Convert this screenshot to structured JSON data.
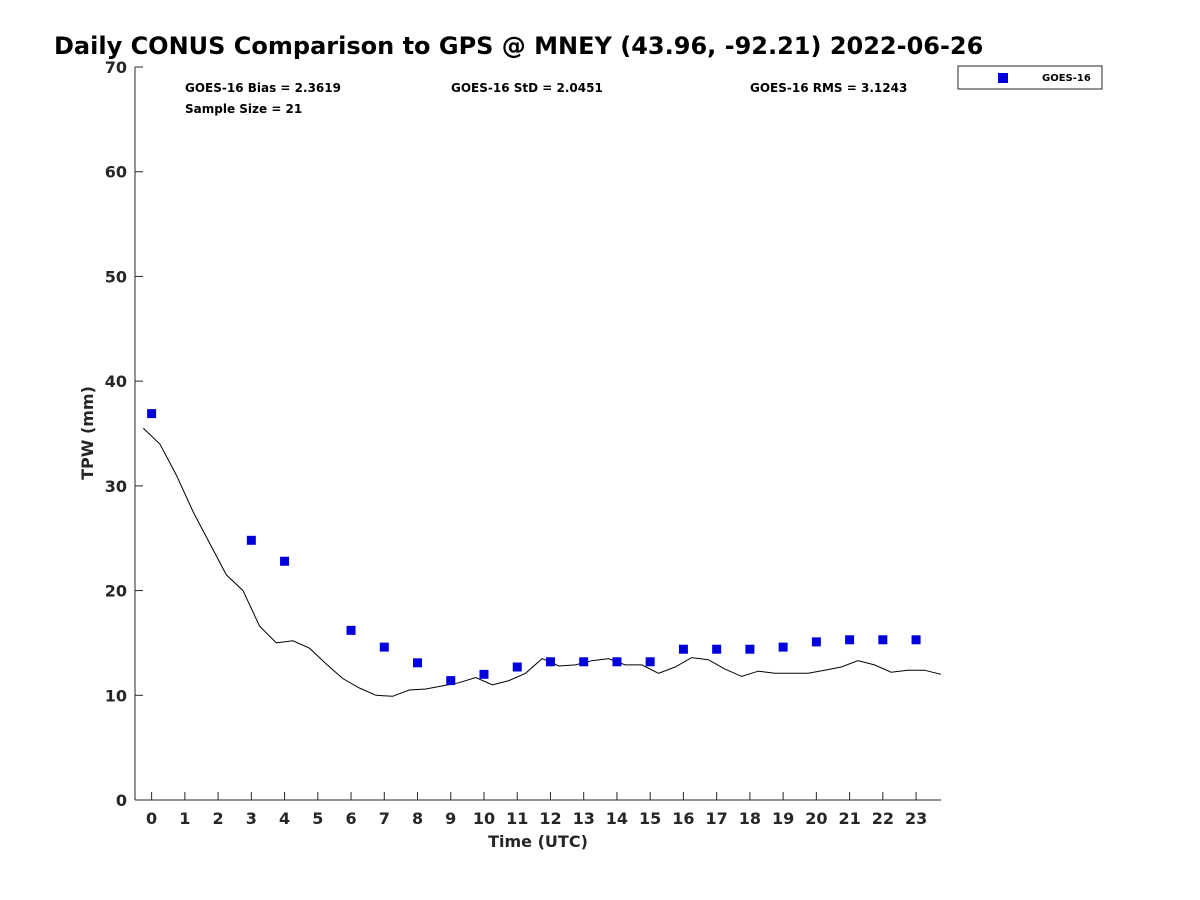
{
  "chart_data": {
    "type": "scatter",
    "title": "Daily CONUS Comparison to GPS @ MNEY (43.96, -92.21) 2022-06-26",
    "xlabel": "Time (UTC)",
    "ylabel": "TPW (mm)",
    "xlim": [
      -0.5,
      23.75
    ],
    "ylim": [
      0,
      70
    ],
    "x_ticks": [
      0,
      1,
      2,
      3,
      4,
      5,
      6,
      7,
      8,
      9,
      10,
      11,
      12,
      13,
      14,
      15,
      16,
      17,
      18,
      19,
      20,
      21,
      22,
      23
    ],
    "y_ticks": [
      0,
      10,
      20,
      30,
      40,
      50,
      60,
      70
    ],
    "grid": false,
    "legend_position": "top-right (outside axes)",
    "stats": {
      "bias": "GOES-16 Bias = 2.3619",
      "std": "GOES-16 StD = 2.0451",
      "rms": "GOES-16 RMS = 3.1243",
      "sample": "Sample Size = 21"
    },
    "series": [
      {
        "name": "GOES-16",
        "kind": "scatter",
        "marker": "square",
        "color": "#0000dd",
        "x": [
          0,
          3,
          4,
          6,
          7,
          8,
          9,
          10,
          11,
          12,
          13,
          14,
          15,
          16,
          17,
          18,
          19,
          20,
          21,
          22,
          23
        ],
        "y": [
          36.9,
          24.8,
          22.8,
          16.2,
          14.6,
          13.1,
          11.4,
          12.0,
          12.7,
          13.2,
          13.2,
          13.2,
          13.2,
          14.4,
          14.4,
          14.4,
          14.6,
          15.1,
          15.3,
          15.3,
          15.3
        ]
      },
      {
        "kind": "line",
        "color": "#000000",
        "x": [
          -0.25,
          0.25,
          0.75,
          1.25,
          1.75,
          2.25,
          2.75,
          3.25,
          3.75,
          4.25,
          4.75,
          5.25,
          5.75,
          6.25,
          6.75,
          7.25,
          7.75,
          8.25,
          8.75,
          9.25,
          9.75,
          10.25,
          10.75,
          11.25,
          11.75,
          12.25,
          12.75,
          13.25,
          13.75,
          14.25,
          14.75,
          15.25,
          15.75,
          16.25,
          16.75,
          17.25,
          17.75,
          18.25,
          18.75,
          19.25,
          19.75,
          20.25,
          20.75,
          21.25,
          21.75,
          22.25,
          22.75,
          23.25,
          23.75
        ],
        "y": [
          35.5,
          34.0,
          31.0,
          27.5,
          24.5,
          21.5,
          20.0,
          16.6,
          15.0,
          15.2,
          14.5,
          13.0,
          11.6,
          10.7,
          10.0,
          9.9,
          10.5,
          10.6,
          10.9,
          11.2,
          11.7,
          11.0,
          11.4,
          12.1,
          13.5,
          12.8,
          12.9,
          13.3,
          13.5,
          12.9,
          12.9,
          12.1,
          12.7,
          13.6,
          13.4,
          12.5,
          11.8,
          12.3,
          12.1,
          12.1,
          12.1,
          12.4,
          12.7,
          13.3,
          12.9,
          12.2,
          12.4,
          12.4,
          12.0
        ]
      }
    ]
  }
}
